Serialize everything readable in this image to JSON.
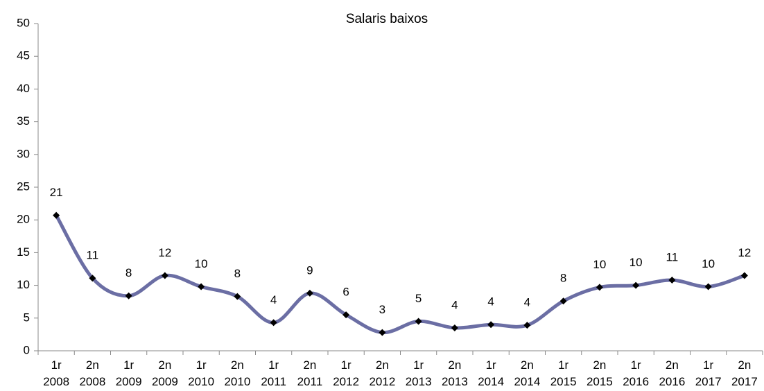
{
  "chart_data": {
    "type": "line",
    "title": "Salaris baixos",
    "categories": [
      [
        "1r",
        "2008"
      ],
      [
        "2n",
        "2008"
      ],
      [
        "1r",
        "2009"
      ],
      [
        "2n",
        "2009"
      ],
      [
        "1r",
        "2010"
      ],
      [
        "2n",
        "2010"
      ],
      [
        "1r",
        "2011"
      ],
      [
        "2n",
        "2011"
      ],
      [
        "1r",
        "2012"
      ],
      [
        "2n",
        "2012"
      ],
      [
        "1r",
        "2013"
      ],
      [
        "2n",
        "2013"
      ],
      [
        "1r",
        "2014"
      ],
      [
        "2n",
        "2014"
      ],
      [
        "1r",
        "2015"
      ],
      [
        "2n",
        "2015"
      ],
      [
        "1r",
        "2016"
      ],
      [
        "2n",
        "2016"
      ],
      [
        "1r",
        "2017"
      ],
      [
        "2n",
        "2017"
      ]
    ],
    "series": [
      {
        "color": "#6b6ea4",
        "values": [
          20.7,
          11.1,
          8.4,
          11.5,
          9.8,
          8.3,
          4.3,
          8.8,
          5.5,
          2.8,
          4.5,
          3.5,
          4.0,
          3.9,
          7.6,
          9.7,
          10.0,
          10.8,
          9.8,
          11.5
        ],
        "value_labels": [
          "21",
          "11",
          "8",
          "12",
          "10",
          "8",
          "4",
          "9",
          "6",
          "3",
          "5",
          "4",
          "4",
          "4",
          "8",
          "10",
          "10",
          "11",
          "10",
          "12"
        ]
      }
    ],
    "ylim": [
      0,
      50
    ],
    "yticks": [
      0,
      5,
      10,
      15,
      20,
      25,
      30,
      35,
      40,
      45,
      50
    ],
    "smooth": true
  }
}
